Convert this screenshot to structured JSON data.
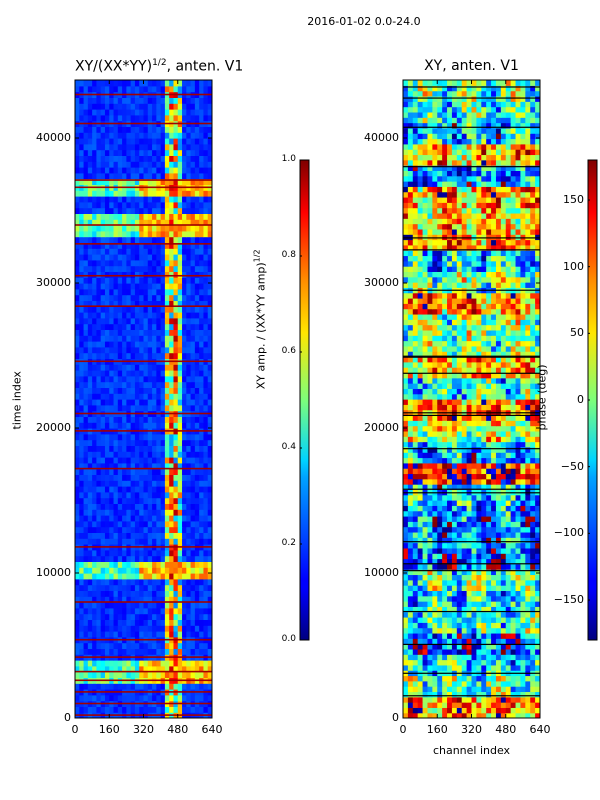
{
  "figure_title": "2016-01-02 0.0-24.0",
  "chart_data": [
    {
      "type": "heatmap",
      "title": "XY/(XX*YY)",
      "title_superscript": "1/2",
      "title_suffix": ", anten. V1",
      "xlabel": "",
      "ylabel": "time index",
      "xlim": [
        0,
        640
      ],
      "ylim": [
        0,
        44000
      ],
      "xticks": [
        0,
        160,
        320,
        480,
        640
      ],
      "yticks": [
        0,
        10000,
        20000,
        30000,
        40000
      ],
      "colormap": "jet",
      "colorbar": {
        "label": "XY amp. / (XX*YY amp)",
        "label_superscript": "1/2",
        "range": [
          0.0,
          1.0
        ],
        "ticks": [
          "0.0",
          "0.2",
          "0.4",
          "0.6",
          "0.8",
          "1.0"
        ]
      },
      "bright_channel_range": [
        410,
        510
      ],
      "high_amplitude_time_rows": [
        3200,
        10300,
        34000,
        36600
      ],
      "flagged_time_rows": [
        200,
        1000,
        1800,
        2600,
        3200,
        4200,
        5400,
        8000,
        11800,
        17200,
        19800,
        21000,
        24600,
        28400,
        30500,
        32700,
        34000,
        36600,
        37100,
        41000,
        43000
      ]
    },
    {
      "type": "heatmap",
      "title": "XY, anten. V1",
      "xlabel": "channel index",
      "ylabel": "",
      "xlim": [
        0,
        640
      ],
      "ylim": [
        0,
        44000
      ],
      "xticks": [
        0,
        160,
        320,
        480,
        640
      ],
      "yticks": [
        0,
        10000,
        20000,
        30000,
        40000
      ],
      "colormap": "jet",
      "colorbar": {
        "label": "phase (deg)",
        "range": [
          -180,
          180
        ],
        "ticks": [
          "150",
          "100",
          "50",
          "0",
          "−50",
          "−100",
          "−150"
        ],
        "tick_values": [
          150,
          100,
          50,
          0,
          -50,
          -100,
          -150
        ]
      }
    }
  ]
}
